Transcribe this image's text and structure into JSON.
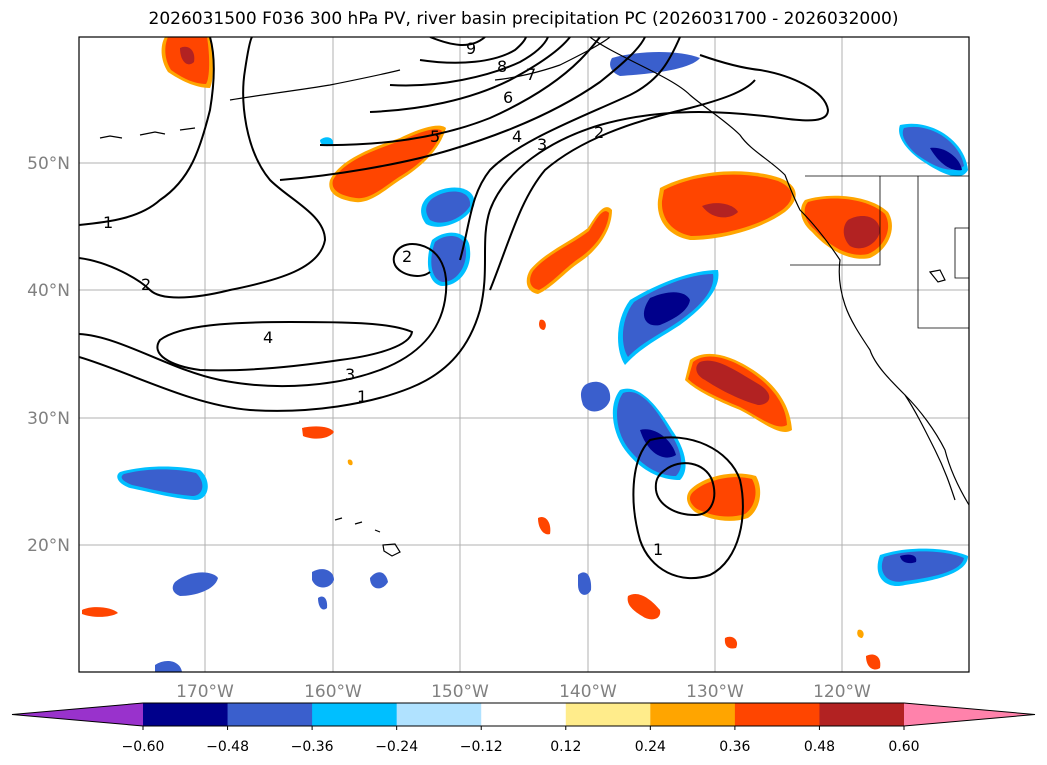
{
  "title": "2026031500 F036 300 hPa PV, river basin precipitation PC (2026031700 - 2026032000)",
  "lat_labels": [
    "50°N",
    "40°N",
    "30°N",
    "20°N"
  ],
  "lon_labels": [
    "170°W",
    "160°W",
    "150°W",
    "140°W",
    "130°W",
    "120°W"
  ],
  "contour_labels": [
    "9",
    "8",
    "7",
    "6",
    "5",
    "4",
    "3",
    "2",
    "1",
    "2",
    "4",
    "3",
    "1",
    "1",
    "2"
  ],
  "colorbar": {
    "ticks": [
      "−0.60",
      "−0.48",
      "−0.36",
      "−0.24",
      "−0.12",
      "0.12",
      "0.24",
      "0.36",
      "0.48",
      "0.60"
    ],
    "colors": [
      "#9932cc",
      "#00008b",
      "#3a5fcd",
      "#00bfff",
      "#b0e2ff",
      "#ffffff",
      "#ffec8b",
      "#ffa500",
      "#ff4500",
      "#b22222",
      "#ff82ab"
    ]
  },
  "colors": {
    "neg_dark": "#00008b",
    "neg_mid": "#3a5fcd",
    "neg_light": "#00bfff",
    "pos_light": "#ffec8b",
    "pos_mid": "#ff4500",
    "pos_dark": "#b22222",
    "grid": "#b0b0b0"
  }
}
